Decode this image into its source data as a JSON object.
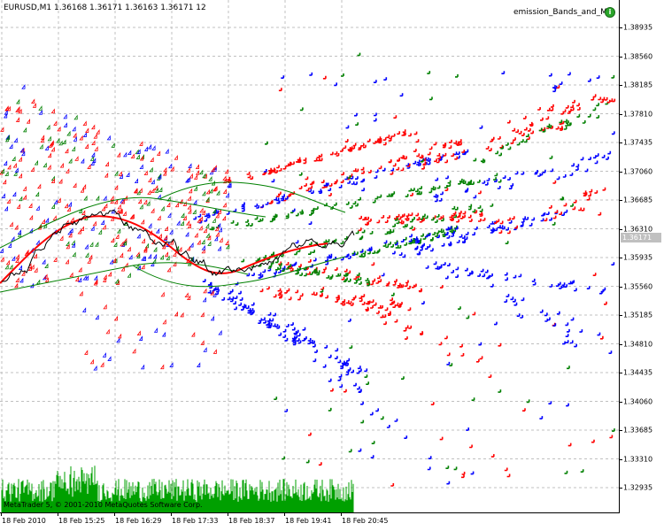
{
  "window": {
    "symbol_info": "EURUSD,M1  1.36168  1.36171  1.36163  1.36171  12",
    "indicator_name": "emission_Bands_and_MA",
    "indicator_icon": "info-icon",
    "copyright": "MetaTrader 5, © 2001-2010 MetaQuotes Software Corp."
  },
  "price_axis": {
    "ticks": [
      "1.38935",
      "1.38560",
      "1.38185",
      "1.37810",
      "1.37435",
      "1.37060",
      "1.36685",
      "1.36310",
      "1.35935",
      "1.35560",
      "1.35185",
      "1.34810",
      "1.34435",
      "1.34060",
      "1.33685",
      "1.33310",
      "1.32935"
    ],
    "current_price": "1.36171"
  },
  "time_axis": {
    "ticks": [
      "18 Feb 2010",
      "18 Feb 15:25",
      "18 Feb 16:29",
      "18 Feb 17:33",
      "18 Feb 18:37",
      "18 Feb 19:41",
      "18 Feb 20:45"
    ]
  },
  "colors": {
    "background": "#ffffff",
    "grid": "#c0c0c0",
    "emission_red": "#ff0000",
    "emission_green": "#008000",
    "emission_blue": "#0000ff",
    "bands_line": "#008000",
    "ma_line": "#ff0000",
    "price_line": "#000000",
    "volume": "#00a000"
  }
}
